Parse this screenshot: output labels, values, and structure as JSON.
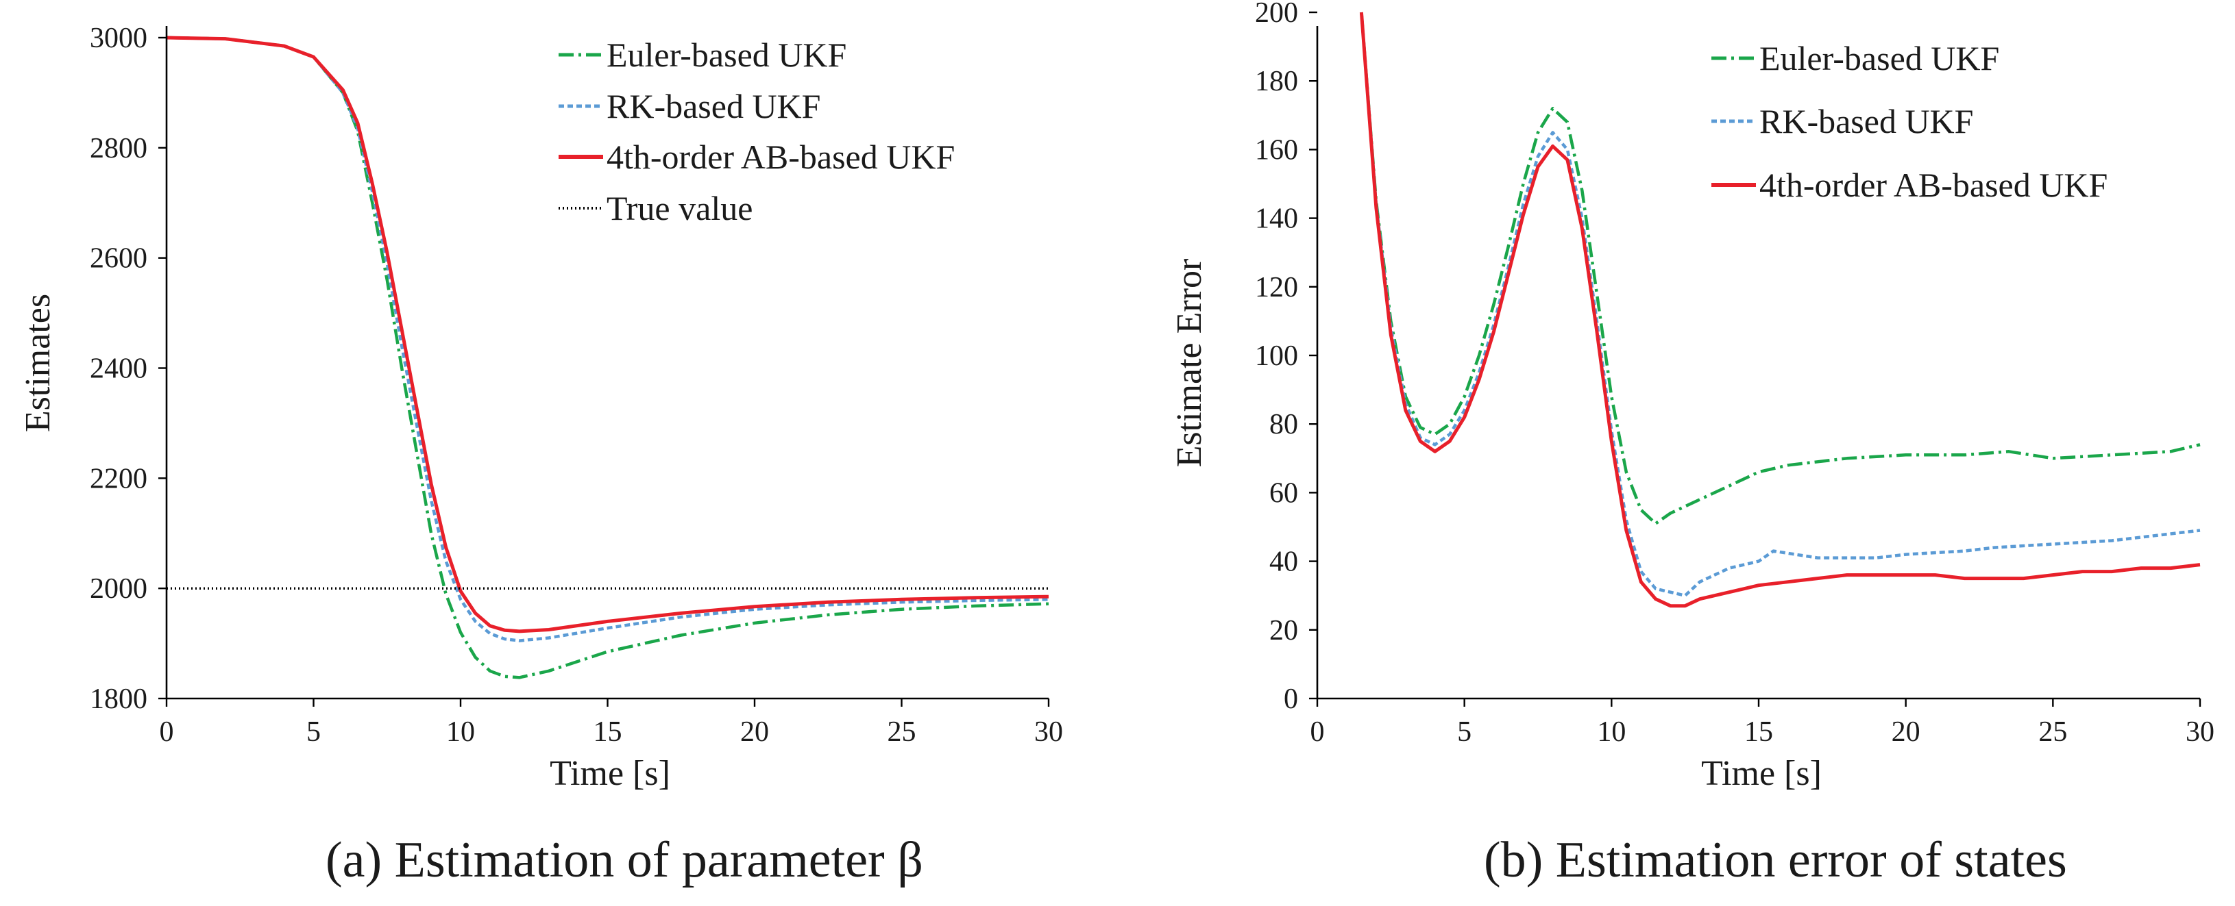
{
  "chart_data": [
    {
      "type": "line",
      "caption": "(a) Estimation of parameter β",
      "xlabel": "Time [s]",
      "ylabel": "Estimates",
      "xlim": [
        0,
        30
      ],
      "ylim": [
        1800,
        3000
      ],
      "xticks": [
        0,
        5,
        10,
        15,
        20,
        25,
        30
      ],
      "yticks": [
        1800,
        2000,
        2200,
        2400,
        2600,
        2800,
        3000
      ],
      "grid": false,
      "legend_position": "top-right",
      "series": [
        {
          "name": "Euler-based UKF",
          "color": "#1aa64a",
          "dash": "dash-dot",
          "points": [
            [
              0,
              3000
            ],
            [
              2,
              2998
            ],
            [
              4,
              2985
            ],
            [
              5,
              2965
            ],
            [
              6,
              2900
            ],
            [
              6.5,
              2830
            ],
            [
              7,
              2700
            ],
            [
              7.5,
              2560
            ],
            [
              8,
              2400
            ],
            [
              8.5,
              2250
            ],
            [
              9,
              2100
            ],
            [
              9.5,
              1990
            ],
            [
              10,
              1920
            ],
            [
              10.5,
              1875
            ],
            [
              11,
              1850
            ],
            [
              11.5,
              1840
            ],
            [
              12,
              1838
            ],
            [
              13,
              1850
            ],
            [
              15,
              1885
            ],
            [
              17.5,
              1915
            ],
            [
              20,
              1937
            ],
            [
              22.5,
              1952
            ],
            [
              25,
              1962
            ],
            [
              27.5,
              1968
            ],
            [
              30,
              1972
            ]
          ]
        },
        {
          "name": "RK-based UKF",
          "color": "#5b9bd5",
          "dash": "dashed",
          "points": [
            [
              0,
              3000
            ],
            [
              2,
              2998
            ],
            [
              4,
              2985
            ],
            [
              5,
              2965
            ],
            [
              6,
              2900
            ],
            [
              6.5,
              2835
            ],
            [
              7,
              2720
            ],
            [
              7.5,
              2590
            ],
            [
              8,
              2440
            ],
            [
              8.5,
              2300
            ],
            [
              9,
              2160
            ],
            [
              9.5,
              2050
            ],
            [
              10,
              1980
            ],
            [
              10.5,
              1940
            ],
            [
              11,
              1918
            ],
            [
              11.5,
              1908
            ],
            [
              12,
              1905
            ],
            [
              13,
              1910
            ],
            [
              15,
              1928
            ],
            [
              17.5,
              1948
            ],
            [
              20,
              1962
            ],
            [
              22.5,
              1970
            ],
            [
              25,
              1975
            ],
            [
              27.5,
              1978
            ],
            [
              30,
              1980
            ]
          ]
        },
        {
          "name": "4th-order AB-based UKF",
          "color": "#e8202a",
          "dash": "solid",
          "points": [
            [
              0,
              3000
            ],
            [
              2,
              2998
            ],
            [
              4,
              2985
            ],
            [
              5,
              2965
            ],
            [
              6,
              2905
            ],
            [
              6.5,
              2845
            ],
            [
              7,
              2735
            ],
            [
              7.5,
              2610
            ],
            [
              8,
              2470
            ],
            [
              8.5,
              2330
            ],
            [
              9,
              2190
            ],
            [
              9.5,
              2075
            ],
            [
              10,
              1995
            ],
            [
              10.5,
              1955
            ],
            [
              11,
              1932
            ],
            [
              11.5,
              1924
            ],
            [
              12,
              1922
            ],
            [
              13,
              1925
            ],
            [
              15,
              1940
            ],
            [
              17.5,
              1955
            ],
            [
              20,
              1967
            ],
            [
              22.5,
              1975
            ],
            [
              25,
              1980
            ],
            [
              27.5,
              1983
            ],
            [
              30,
              1985
            ]
          ]
        },
        {
          "name": "True value",
          "color": "#000000",
          "dash": "dotted",
          "points": [
            [
              0,
              2000
            ],
            [
              30,
              2000
            ]
          ]
        }
      ]
    },
    {
      "type": "line",
      "caption": "(b) Estimation error of states",
      "xlabel": "Time [s]",
      "ylabel": "Estimate Error",
      "xlim": [
        0,
        30
      ],
      "ylim": [
        0,
        200
      ],
      "xticks": [
        0,
        5,
        10,
        15,
        20,
        25,
        30
      ],
      "yticks": [
        0,
        20,
        40,
        60,
        80,
        100,
        120,
        140,
        160,
        180,
        200
      ],
      "grid": false,
      "legend_position": "top-right",
      "series": [
        {
          "name": "Euler-based UKF",
          "color": "#1aa64a",
          "dash": "dash-dot",
          "points": [
            [
              1.5,
              200
            ],
            [
              2,
              145
            ],
            [
              2.5,
              110
            ],
            [
              3,
              88
            ],
            [
              3.5,
              79
            ],
            [
              4,
              77
            ],
            [
              4.5,
              80
            ],
            [
              5,
              88
            ],
            [
              5.5,
              100
            ],
            [
              6,
              115
            ],
            [
              6.5,
              132
            ],
            [
              7,
              150
            ],
            [
              7.5,
              165
            ],
            [
              8,
              172
            ],
            [
              8.5,
              168
            ],
            [
              9,
              148
            ],
            [
              9.5,
              118
            ],
            [
              10,
              88
            ],
            [
              10.5,
              66
            ],
            [
              11,
              55
            ],
            [
              11.5,
              51
            ],
            [
              12,
              54
            ],
            [
              13,
              58
            ],
            [
              14,
              62
            ],
            [
              15,
              66
            ],
            [
              16,
              68
            ],
            [
              17,
              69
            ],
            [
              18,
              70
            ],
            [
              20,
              71
            ],
            [
              22,
              71
            ],
            [
              23.5,
              72
            ],
            [
              25,
              70
            ],
            [
              27,
              71
            ],
            [
              29,
              72
            ],
            [
              30,
              74
            ]
          ]
        },
        {
          "name": "RK-based UKF",
          "color": "#5b9bd5",
          "dash": "dashed",
          "points": [
            [
              1.5,
              200
            ],
            [
              2,
              144
            ],
            [
              2.5,
              108
            ],
            [
              3,
              86
            ],
            [
              3.5,
              76
            ],
            [
              4,
              74
            ],
            [
              4.5,
              77
            ],
            [
              5,
              84
            ],
            [
              5.5,
              95
            ],
            [
              6,
              109
            ],
            [
              6.5,
              126
            ],
            [
              7,
              144
            ],
            [
              7.5,
              158
            ],
            [
              8,
              165
            ],
            [
              8.5,
              160
            ],
            [
              9,
              140
            ],
            [
              9.5,
              110
            ],
            [
              10,
              78
            ],
            [
              10.5,
              52
            ],
            [
              11,
              37
            ],
            [
              11.5,
              32
            ],
            [
              12,
              31
            ],
            [
              12.5,
              30
            ],
            [
              13,
              34
            ],
            [
              14,
              38
            ],
            [
              15,
              40
            ],
            [
              15.5,
              43
            ],
            [
              17,
              41
            ],
            [
              19,
              41
            ],
            [
              20,
              42
            ],
            [
              22,
              43
            ],
            [
              23,
              44
            ],
            [
              25,
              45
            ],
            [
              27,
              46
            ],
            [
              29,
              48
            ],
            [
              30,
              49
            ]
          ]
        },
        {
          "name": "4th-order AB-based UKF",
          "color": "#e8202a",
          "dash": "solid",
          "points": [
            [
              1.5,
              200
            ],
            [
              2,
              143
            ],
            [
              2.5,
              106
            ],
            [
              3,
              84
            ],
            [
              3.5,
              75
            ],
            [
              4,
              72
            ],
            [
              4.5,
              75
            ],
            [
              5,
              82
            ],
            [
              5.5,
              93
            ],
            [
              6,
              107
            ],
            [
              6.5,
              124
            ],
            [
              7,
              141
            ],
            [
              7.5,
              155
            ],
            [
              8,
              161
            ],
            [
              8.5,
              157
            ],
            [
              9,
              137
            ],
            [
              9.5,
              107
            ],
            [
              10,
              75
            ],
            [
              10.5,
              49
            ],
            [
              11,
              34
            ],
            [
              11.5,
              29
            ],
            [
              12,
              27
            ],
            [
              12.5,
              27
            ],
            [
              13,
              29
            ],
            [
              14,
              31
            ],
            [
              15,
              33
            ],
            [
              16,
              34
            ],
            [
              17,
              35
            ],
            [
              18,
              36
            ],
            [
              19,
              36
            ],
            [
              20,
              36
            ],
            [
              21,
              36
            ],
            [
              22,
              35
            ],
            [
              23,
              35
            ],
            [
              24,
              35
            ],
            [
              25,
              36
            ],
            [
              26,
              37
            ],
            [
              27,
              37
            ],
            [
              28,
              38
            ],
            [
              29,
              38
            ],
            [
              30,
              39
            ]
          ]
        }
      ]
    }
  ]
}
